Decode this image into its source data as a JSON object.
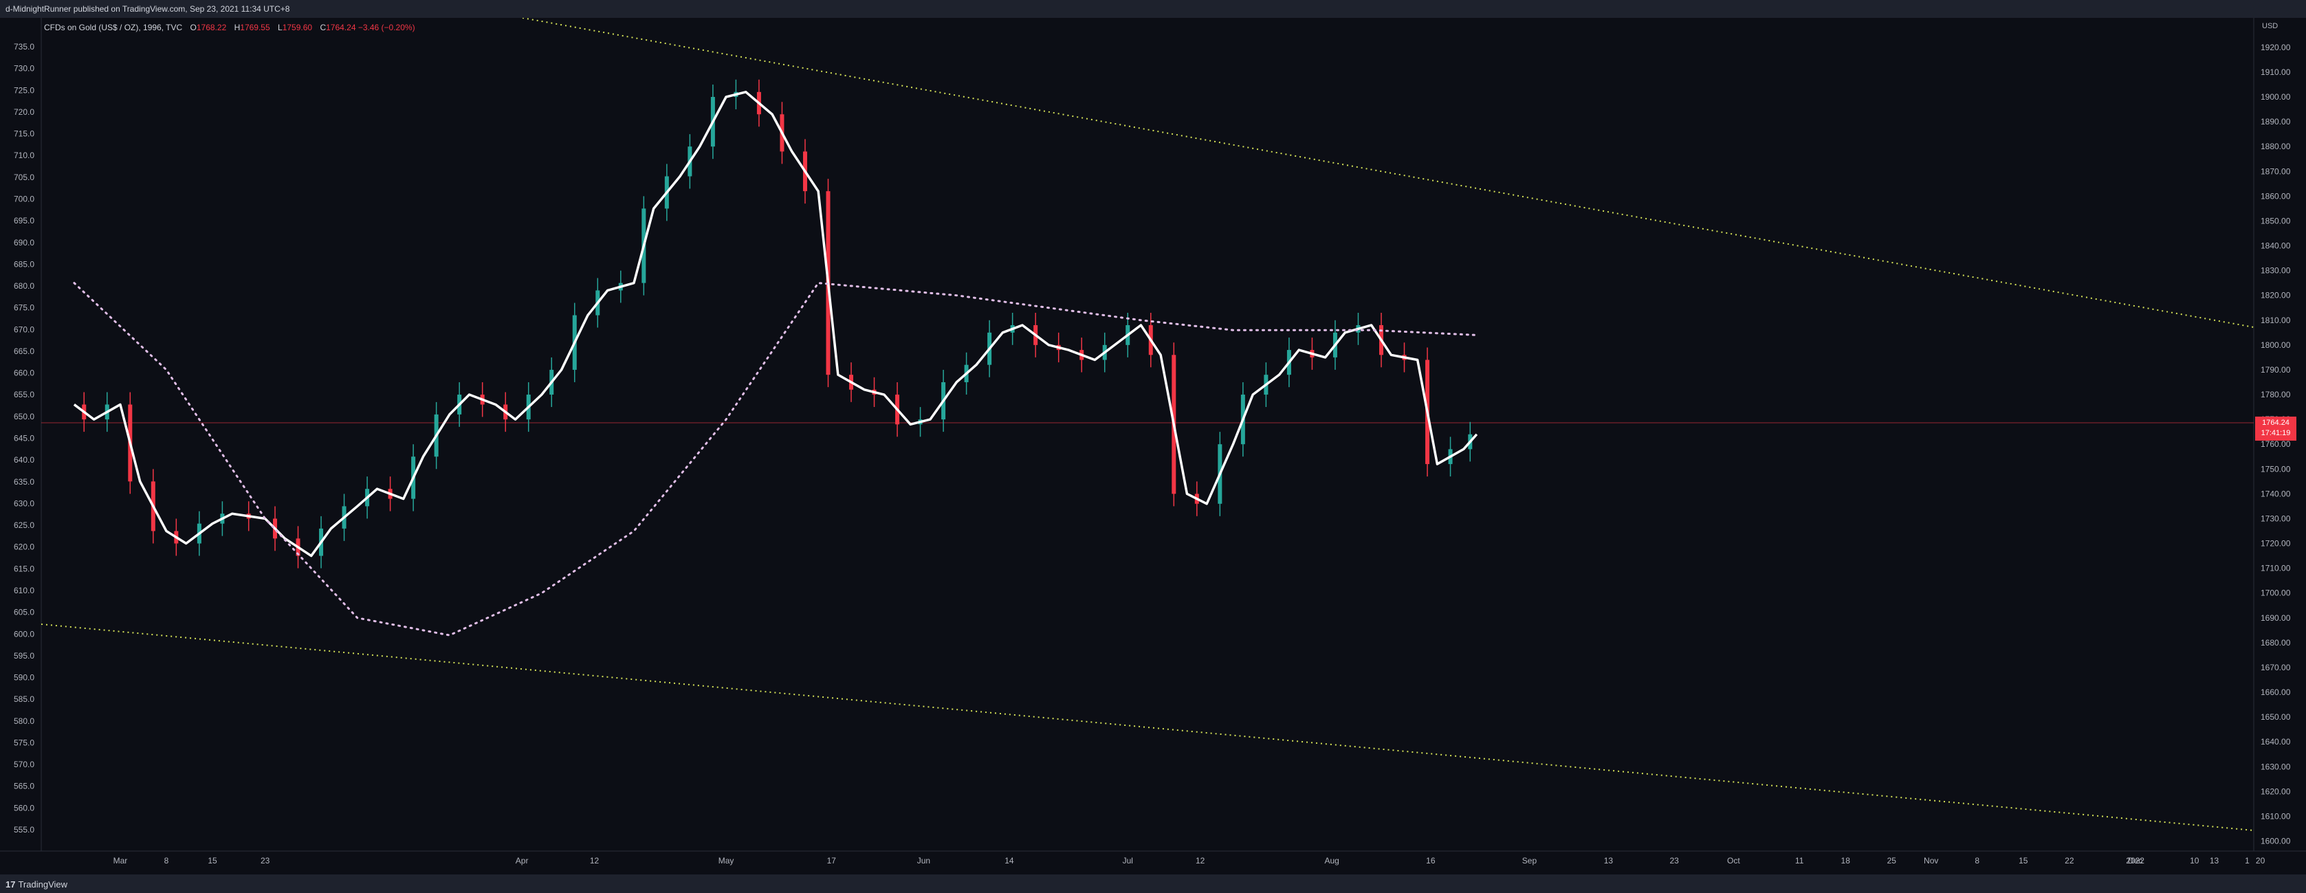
{
  "header": {
    "published": "d-MidnightRunner published on TradingView.com, Sep 23, 2021 11:34 UTC+8"
  },
  "legend": {
    "symbol": "CFDs on Gold (US$ / OZ), 1996, TVC",
    "o_label": "O",
    "o": "1768.22",
    "h_label": "H",
    "h": "1769.55",
    "l_label": "L",
    "l": "1759.60",
    "c_label": "C",
    "c": "1764.24",
    "change": "−3.46 (−0.20%)"
  },
  "right_axis": {
    "currency": "USD",
    "last_price": "1764.24",
    "countdown": "17:41:19"
  },
  "footer": {
    "brand": "TradingView",
    "logo_mark": "17"
  },
  "colors": {
    "bg": "#0c0e15",
    "up": "#26a69a",
    "down": "#f23645",
    "ma_fast": "#ffffff",
    "ma_slow": "#e1bee7",
    "trend": "#d4e157"
  },
  "chart_data": {
    "type": "line",
    "title": "",
    "left_axis": {
      "ticks": [
        555,
        560,
        565,
        570,
        575,
        580,
        585,
        590,
        595,
        600,
        605,
        610,
        615,
        620,
        625,
        630,
        635,
        640,
        645,
        650,
        655,
        660,
        665,
        670,
        675,
        680,
        685,
        690,
        695,
        700,
        705,
        710,
        715,
        720,
        725,
        730,
        735
      ]
    },
    "right_axis": {
      "ticks": [
        1600,
        1610,
        1620,
        1630,
        1640,
        1650,
        1660,
        1670,
        1680,
        1690,
        1700,
        1710,
        1720,
        1730,
        1740,
        1750,
        1760,
        1770,
        1780,
        1790,
        1800,
        1810,
        1820,
        1830,
        1840,
        1850,
        1860,
        1870,
        1880,
        1890,
        1900,
        1910,
        1920
      ]
    },
    "x_ticks": [
      "Mar",
      "8",
      "15",
      "23",
      "Apr",
      "12",
      "May",
      "17",
      "Jun",
      "14",
      "Jul",
      "12",
      "Aug",
      "16",
      "Sep",
      "13",
      "23",
      "Oct",
      "11",
      "18",
      "25",
      "Nov",
      "8",
      "15",
      "22",
      "Dec",
      "13",
      "20",
      "2022",
      "10",
      "1"
    ],
    "ylim_right": [
      1596,
      1923
    ],
    "series": [
      {
        "type": "line",
        "x": [
          "Feb 22",
          "Feb 25",
          "Mar 1",
          "Mar 4",
          "Mar 8",
          "Mar 11",
          "Mar 15",
          "Mar 18",
          "Mar 23",
          "Mar 26",
          "Mar 30",
          "Apr 2",
          "Apr 6",
          "Apr 9",
          "Apr 13",
          "Apr 16",
          "Apr 20",
          "Apr 23",
          "Apr 27",
          "Apr 30",
          "May 4",
          "May 7",
          "May 11",
          "May 14",
          "May 18",
          "May 21",
          "May 25",
          "May 28",
          "Jun 1",
          "Jun 4",
          "Jun 8",
          "Jun 11",
          "Jun 15",
          "Jun 18",
          "Jun 22",
          "Jun 25",
          "Jun 29",
          "Jul 2",
          "Jul 6",
          "Jul 9",
          "Jul 13",
          "Jul 16",
          "Jul 20",
          "Jul 23",
          "Jul 27",
          "Jul 30",
          "Aug 3",
          "Aug 6",
          "Aug 10",
          "Aug 13",
          "Aug 17",
          "Aug 20",
          "Aug 24",
          "Aug 27",
          "Aug 31",
          "Sep 3",
          "Sep 7",
          "Sep 10",
          "Sep 14",
          "Sep 17",
          "Sep 21",
          "Sep 23"
        ],
        "y": [
          1776,
          1770,
          1776,
          1745,
          1725,
          1720,
          1728,
          1732,
          1730,
          1722,
          1715,
          1726,
          1735,
          1742,
          1738,
          1755,
          1772,
          1780,
          1776,
          1770,
          1780,
          1790,
          1812,
          1822,
          1825,
          1855,
          1868,
          1880,
          1900,
          1902,
          1893,
          1878,
          1862,
          1788,
          1782,
          1780,
          1768,
          1770,
          1785,
          1792,
          1805,
          1808,
          1800,
          1798,
          1794,
          1800,
          1808,
          1796,
          1740,
          1736,
          1760,
          1780,
          1788,
          1798,
          1795,
          1805,
          1808,
          1796,
          1794,
          1752,
          1758,
          1764
        ]
      },
      {
        "type": "line",
        "style": "dotted",
        "x": [
          "Feb 22",
          "Mar 8",
          "Mar 23",
          "Apr 6",
          "Apr 20",
          "May 4",
          "May 18",
          "Jun 1",
          "Jun 15",
          "Jul 6",
          "Aug 3",
          "Aug 17",
          "Sep 7",
          "Sep 23"
        ],
        "y": [
          1825,
          1790,
          1730,
          1690,
          1683,
          1700,
          1725,
          1770,
          1825,
          1820,
          1810,
          1806,
          1806,
          1804
        ]
      }
    ]
  }
}
